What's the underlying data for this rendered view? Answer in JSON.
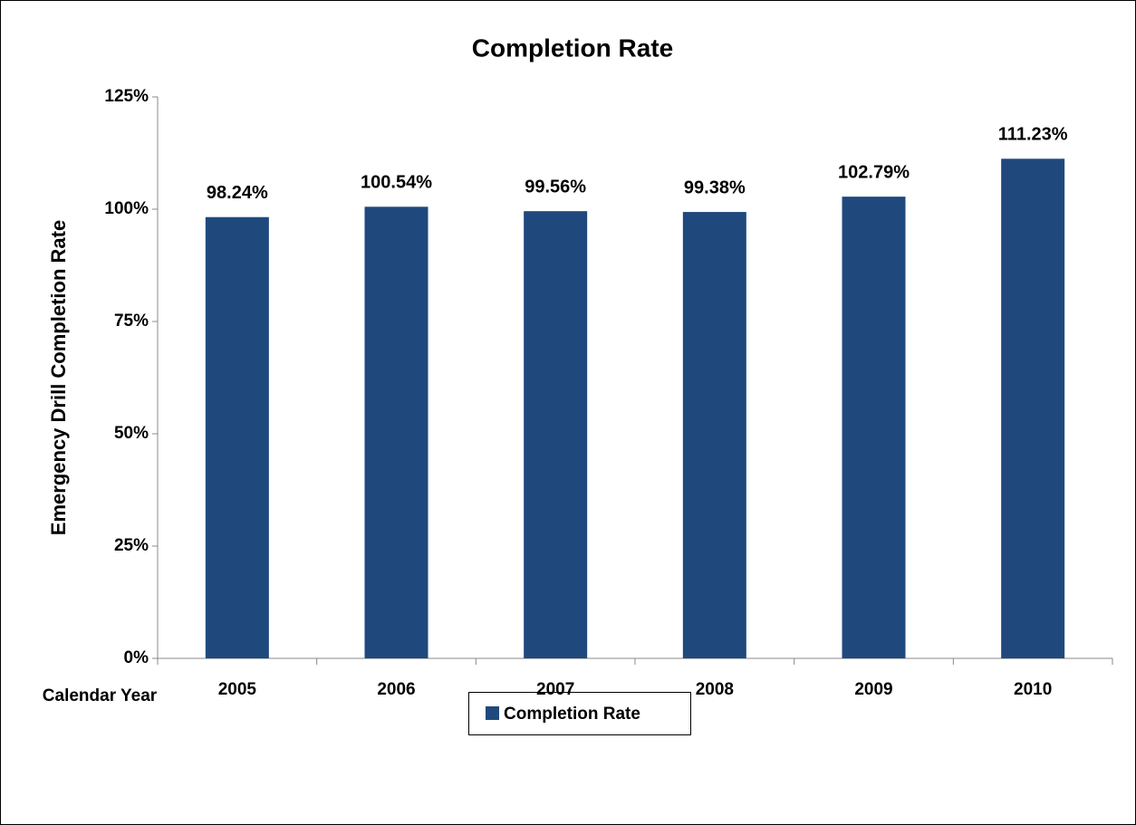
{
  "chart_data": {
    "type": "bar",
    "title": "Completion Rate",
    "x_label": "Calendar Year",
    "y_label": "Emergency Drill Completion Rate",
    "categories": [
      "2005",
      "2006",
      "2007",
      "2008",
      "2009",
      "2010"
    ],
    "series": [
      {
        "name": "Completion Rate",
        "color": "#1f497d",
        "values": [
          98.24,
          100.54,
          99.56,
          99.38,
          102.79,
          111.23
        ],
        "value_labels": [
          "98.24%",
          "100.54%",
          "99.56%",
          "99.38%",
          "102.79%",
          "111.23%"
        ]
      }
    ],
    "ylim": [
      0,
      125
    ],
    "yticks": [
      {
        "value": 0,
        "label": "0%"
      },
      {
        "value": 25,
        "label": "25%"
      },
      {
        "value": 50,
        "label": "50%"
      },
      {
        "value": 75,
        "label": "75%"
      },
      {
        "value": 100,
        "label": "100%"
      },
      {
        "value": 125,
        "label": "125%"
      }
    ],
    "grid": false,
    "legend": "bottom"
  }
}
